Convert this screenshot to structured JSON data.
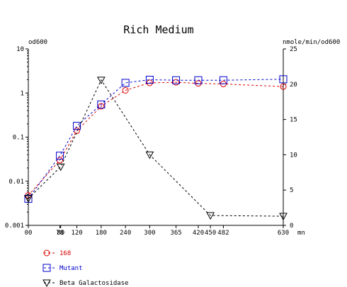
{
  "chart_data": {
    "type": "line",
    "title": "Rich Medium",
    "left_axis_label": "od600",
    "right_axis_label": "nmole/min/od600",
    "x_unit_label": "mn",
    "x_ticks": [
      0,
      78,
      80,
      120,
      180,
      240,
      300,
      365,
      420,
      450,
      482,
      630
    ],
    "x_tick_labels": [
      "00",
      "78",
      "80",
      "120",
      "180",
      "240",
      "300",
      "365",
      "420",
      "450",
      "482",
      "630"
    ],
    "x_range": [
      0,
      630
    ],
    "left_scale": "log",
    "left_ylim": [
      0.001,
      10
    ],
    "left_ticks": [
      10,
      1,
      0.1,
      0.01,
      0.001
    ],
    "left_tick_labels": [
      "10",
      "1",
      "0.1",
      "0.01",
      "0.001"
    ],
    "right_ylim": [
      0,
      25
    ],
    "right_ticks": [
      25,
      20,
      15,
      10,
      5,
      0
    ],
    "right_tick_labels": [
      "25",
      "20",
      "15",
      "10",
      "5",
      "0"
    ],
    "grid": false,
    "legend_position": "bottom-left",
    "series": [
      {
        "name": "168",
        "axis": "left",
        "color": "#dd0000",
        "marker": "circle",
        "x": [
          0,
          78,
          120,
          180,
          240,
          300,
          365,
          420,
          482,
          630
        ],
        "y": [
          0.0048,
          0.03,
          0.14,
          0.5,
          1.15,
          1.7,
          1.75,
          1.65,
          1.6,
          1.4
        ]
      },
      {
        "name": "Mutant",
        "axis": "left",
        "color": "#0000cc",
        "marker": "square",
        "x": [
          0,
          78,
          120,
          180,
          240,
          300,
          365,
          420,
          482,
          630
        ],
        "y": [
          0.004,
          0.038,
          0.18,
          0.55,
          1.7,
          2.0,
          1.95,
          1.95,
          1.95,
          2.05
        ]
      },
      {
        "name": "Beta Galactosidase",
        "axis": "right",
        "color": "#000000",
        "marker": "triangle-down",
        "x": [
          0,
          80,
          180,
          300,
          450,
          630
        ],
        "y": [
          3.8,
          8.3,
          20.6,
          10.0,
          1.4,
          1.3
        ]
      }
    ]
  }
}
